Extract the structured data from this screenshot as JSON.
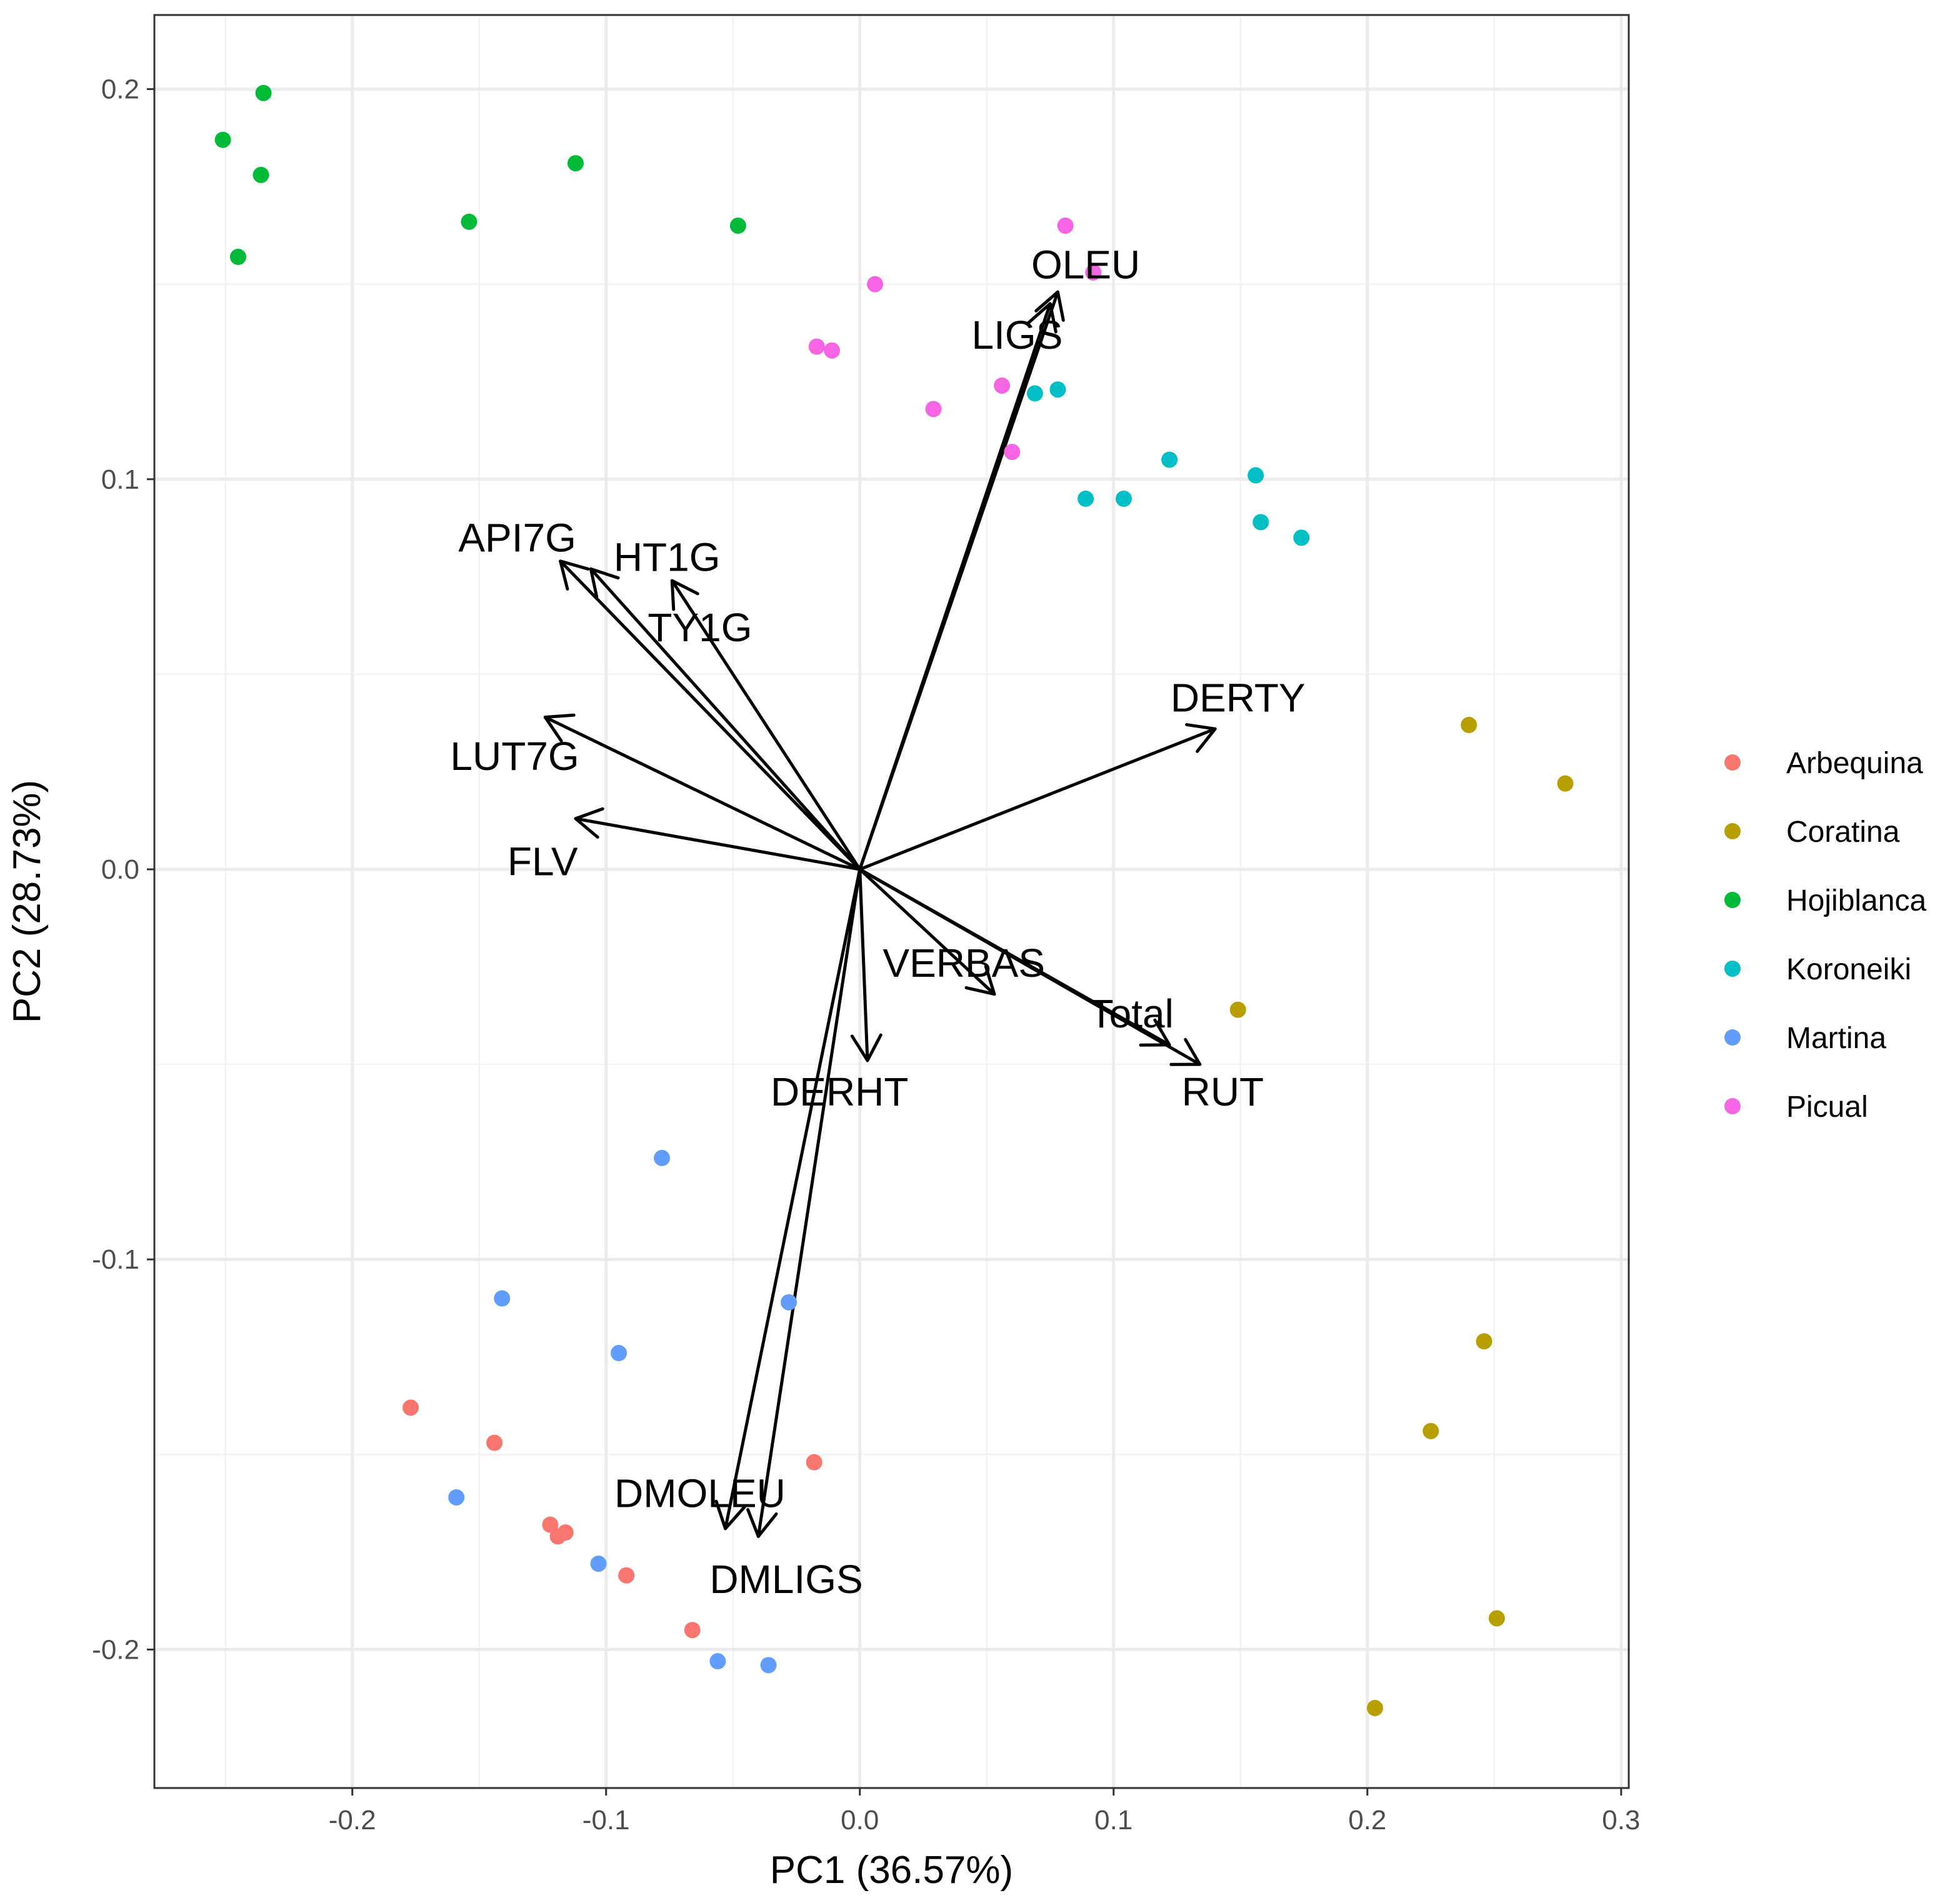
{
  "chart_data": {
    "type": "scatter",
    "subtype": "pca-biplot",
    "title": "",
    "xlabel": "PC1 (36.57%)",
    "ylabel": "PC2 (28.73%)",
    "xlim": [
      -0.278,
      0.303
    ],
    "ylim": [
      -0.2355,
      0.219
    ],
    "xticks": [
      -0.2,
      -0.1,
      0.0,
      0.1,
      0.2,
      0.3
    ],
    "xtick_labels": [
      "-0.2",
      "-0.1",
      "0.0",
      "0.1",
      "0.2",
      "0.3"
    ],
    "yticks": [
      -0.2,
      -0.1,
      0.0,
      0.1,
      0.2
    ],
    "ytick_labels": [
      "-0.2",
      "-0.1",
      "0.0",
      "0.1",
      "0.2"
    ],
    "grid": true,
    "legend_position": "right",
    "series": [
      {
        "name": "Arbequina",
        "color": "#F8766D",
        "points": [
          [
            -0.177,
            -0.138
          ],
          [
            -0.144,
            -0.147
          ],
          [
            -0.122,
            -0.168
          ],
          [
            -0.119,
            -0.171
          ],
          [
            -0.116,
            -0.17
          ],
          [
            -0.092,
            -0.181
          ],
          [
            -0.066,
            -0.195
          ],
          [
            -0.018,
            -0.152
          ]
        ]
      },
      {
        "name": "Coratina",
        "color": "#B79F00",
        "points": [
          [
            0.149,
            -0.036
          ],
          [
            0.24,
            0.037
          ],
          [
            0.278,
            0.022
          ],
          [
            0.246,
            -0.121
          ],
          [
            0.225,
            -0.144
          ],
          [
            0.251,
            -0.192
          ],
          [
            0.203,
            -0.215
          ]
        ]
      },
      {
        "name": "Hojiblanca",
        "color": "#00BA38",
        "points": [
          [
            -0.251,
            0.187
          ],
          [
            -0.235,
            0.199
          ],
          [
            -0.236,
            0.178
          ],
          [
            -0.245,
            0.157
          ],
          [
            -0.154,
            0.166
          ],
          [
            -0.112,
            0.181
          ],
          [
            -0.048,
            0.165
          ]
        ]
      },
      {
        "name": "Koroneiki",
        "color": "#00BFC4",
        "points": [
          [
            0.069,
            0.122
          ],
          [
            0.078,
            0.123
          ],
          [
            0.122,
            0.105
          ],
          [
            0.156,
            0.101
          ],
          [
            0.089,
            0.095
          ],
          [
            0.104,
            0.095
          ],
          [
            0.158,
            0.089
          ],
          [
            0.174,
            0.085
          ]
        ]
      },
      {
        "name": "Martina",
        "color": "#619CFF",
        "points": [
          [
            -0.078,
            -0.074
          ],
          [
            -0.141,
            -0.11
          ],
          [
            -0.028,
            -0.111
          ],
          [
            -0.095,
            -0.124
          ],
          [
            -0.159,
            -0.161
          ],
          [
            -0.103,
            -0.178
          ],
          [
            -0.056,
            -0.203
          ],
          [
            -0.036,
            -0.204
          ]
        ]
      },
      {
        "name": "Picual",
        "color": "#F564E3",
        "points": [
          [
            0.081,
            0.165
          ],
          [
            0.092,
            0.153
          ],
          [
            0.006,
            0.15
          ],
          [
            -0.017,
            0.134
          ],
          [
            -0.011,
            0.133
          ],
          [
            0.056,
            0.124
          ],
          [
            0.029,
            0.118
          ],
          [
            0.06,
            0.107
          ]
        ]
      }
    ],
    "loadings": [
      {
        "name": "OLEU",
        "x": 0.078,
        "y": 0.148,
        "label_x": 0.089,
        "label_y": 0.155
      },
      {
        "name": "LIGS",
        "x": 0.075,
        "y": 0.145,
        "label_x": 0.062,
        "label_y": 0.137
      },
      {
        "name": "API7G",
        "x": -0.118,
        "y": 0.079,
        "label_x": -0.135,
        "label_y": 0.085
      },
      {
        "name": "HT1G",
        "x": -0.106,
        "y": 0.077,
        "label_x": -0.076,
        "label_y": 0.08
      },
      {
        "name": "TY1G",
        "x": -0.074,
        "y": 0.074,
        "label_x": -0.063,
        "label_y": 0.062
      },
      {
        "name": "LUT7G",
        "x": -0.124,
        "y": 0.039,
        "label_x": -0.136,
        "label_y": 0.029
      },
      {
        "name": "FLV",
        "x": -0.112,
        "y": 0.013,
        "label_x": -0.125,
        "label_y": 0.002
      },
      {
        "name": "DERTY",
        "x": 0.14,
        "y": 0.036,
        "label_x": 0.149,
        "label_y": 0.044
      },
      {
        "name": "VERBAS",
        "x": 0.053,
        "y": -0.032,
        "label_x": 0.041,
        "label_y": -0.024
      },
      {
        "name": "Total",
        "x": 0.122,
        "y": -0.045,
        "label_x": 0.107,
        "label_y": -0.037
      },
      {
        "name": "RUT",
        "x": 0.134,
        "y": -0.05,
        "label_x": 0.143,
        "label_y": -0.057
      },
      {
        "name": "DERHT",
        "x": 0.003,
        "y": -0.049,
        "label_x": -0.008,
        "label_y": -0.057
      },
      {
        "name": "DMOLEU",
        "x": -0.053,
        "y": -0.169,
        "label_x": -0.063,
        "label_y": -0.16
      },
      {
        "name": "DMLIGS",
        "x": -0.04,
        "y": -0.171,
        "label_x": -0.029,
        "label_y": -0.182
      }
    ]
  }
}
